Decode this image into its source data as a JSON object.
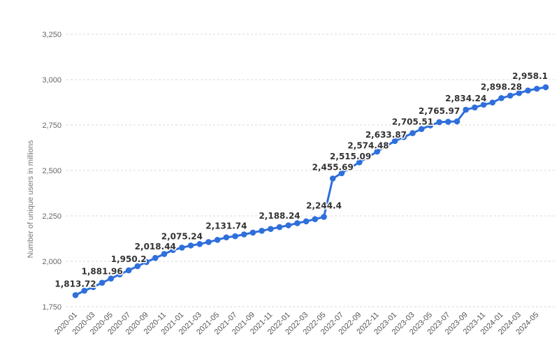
{
  "chart_data": {
    "type": "line",
    "ylabel": "Number of unique users in millions",
    "xlabel": "",
    "ylim": [
      1750,
      3250
    ],
    "yticks": [
      1750,
      2000,
      2250,
      2500,
      2750,
      3000,
      3250
    ],
    "ytick_labels": [
      "1,750",
      "2,000",
      "2,250",
      "2,500",
      "2,750",
      "3,000",
      "3,250"
    ],
    "grid": true,
    "color": "#2f6fdb",
    "xtick_labels": [
      "2020-01",
      "2020-03",
      "2020-05",
      "2020-07",
      "2020-09",
      "2020-11",
      "2021-01",
      "2021-03",
      "2021-05",
      "2021-07",
      "2021-09",
      "2021-11",
      "2022-01",
      "2022-03",
      "2022-05",
      "2022-07",
      "2022-09",
      "2022-11",
      "2023-01",
      "2023-03",
      "2023-05",
      "2023-07",
      "2023-09",
      "2023-11",
      "2024-01",
      "2024-03",
      "2024-05"
    ],
    "x": [
      "2020-01",
      "2020-02",
      "2020-03",
      "2020-04",
      "2020-05",
      "2020-06",
      "2020-07",
      "2020-08",
      "2020-09",
      "2020-10",
      "2020-11",
      "2020-12",
      "2021-01",
      "2021-02",
      "2021-03",
      "2021-04",
      "2021-05",
      "2021-06",
      "2021-07",
      "2021-08",
      "2021-09",
      "2021-10",
      "2021-11",
      "2021-12",
      "2022-01",
      "2022-02",
      "2022-03",
      "2022-04",
      "2022-05",
      "2022-06",
      "2022-07",
      "2022-08",
      "2022-09",
      "2022-10",
      "2022-11",
      "2022-12",
      "2023-01",
      "2023-02",
      "2023-03",
      "2023-04",
      "2023-05",
      "2023-06",
      "2023-07",
      "2023-08",
      "2023-09",
      "2023-10",
      "2023-11",
      "2023-12",
      "2024-01",
      "2024-02",
      "2024-03",
      "2024-04",
      "2024-05",
      "2024-06"
    ],
    "values": [
      1813.72,
      1838,
      1858,
      1881.96,
      1905,
      1928,
      1950.2,
      1973,
      1996,
      2018.44,
      2040,
      2062,
      2075.24,
      2087,
      2095,
      2106,
      2118,
      2131.74,
      2138,
      2148,
      2158,
      2168,
      2178,
      2188.24,
      2198,
      2210,
      2220,
      2232,
      2244.4,
      2455.69,
      2485,
      2515.09,
      2545,
      2574.48,
      2604,
      2633.87,
      2662,
      2684,
      2705.51,
      2728,
      2748,
      2765.97,
      2768,
      2770,
      2834.24,
      2847,
      2862,
      2874,
      2898.28,
      2912,
      2926,
      2940,
      2950,
      2958.1
    ],
    "data_labels": [
      {
        "x": "2020-01",
        "text": "1,813.72"
      },
      {
        "x": "2020-04",
        "text": "1,881.96"
      },
      {
        "x": "2020-07",
        "text": "1,950.2"
      },
      {
        "x": "2020-10",
        "text": "2,018.44"
      },
      {
        "x": "2021-01",
        "text": "2,075.24"
      },
      {
        "x": "2021-06",
        "text": "2,131.74"
      },
      {
        "x": "2021-12",
        "text": "2,188.24"
      },
      {
        "x": "2022-05",
        "text": "2,244.4"
      },
      {
        "x": "2022-06",
        "text": "2,455.69"
      },
      {
        "x": "2022-08",
        "text": "2,515.09"
      },
      {
        "x": "2022-10",
        "text": "2,574.48"
      },
      {
        "x": "2022-12",
        "text": "2,633.87"
      },
      {
        "x": "2023-03",
        "text": "2,705.51"
      },
      {
        "x": "2023-06",
        "text": "2,765.97"
      },
      {
        "x": "2023-09",
        "text": "2,834.24"
      },
      {
        "x": "2024-01",
        "text": "2,898.28"
      },
      {
        "x": "2024-06",
        "text": "2,958.1"
      }
    ]
  }
}
